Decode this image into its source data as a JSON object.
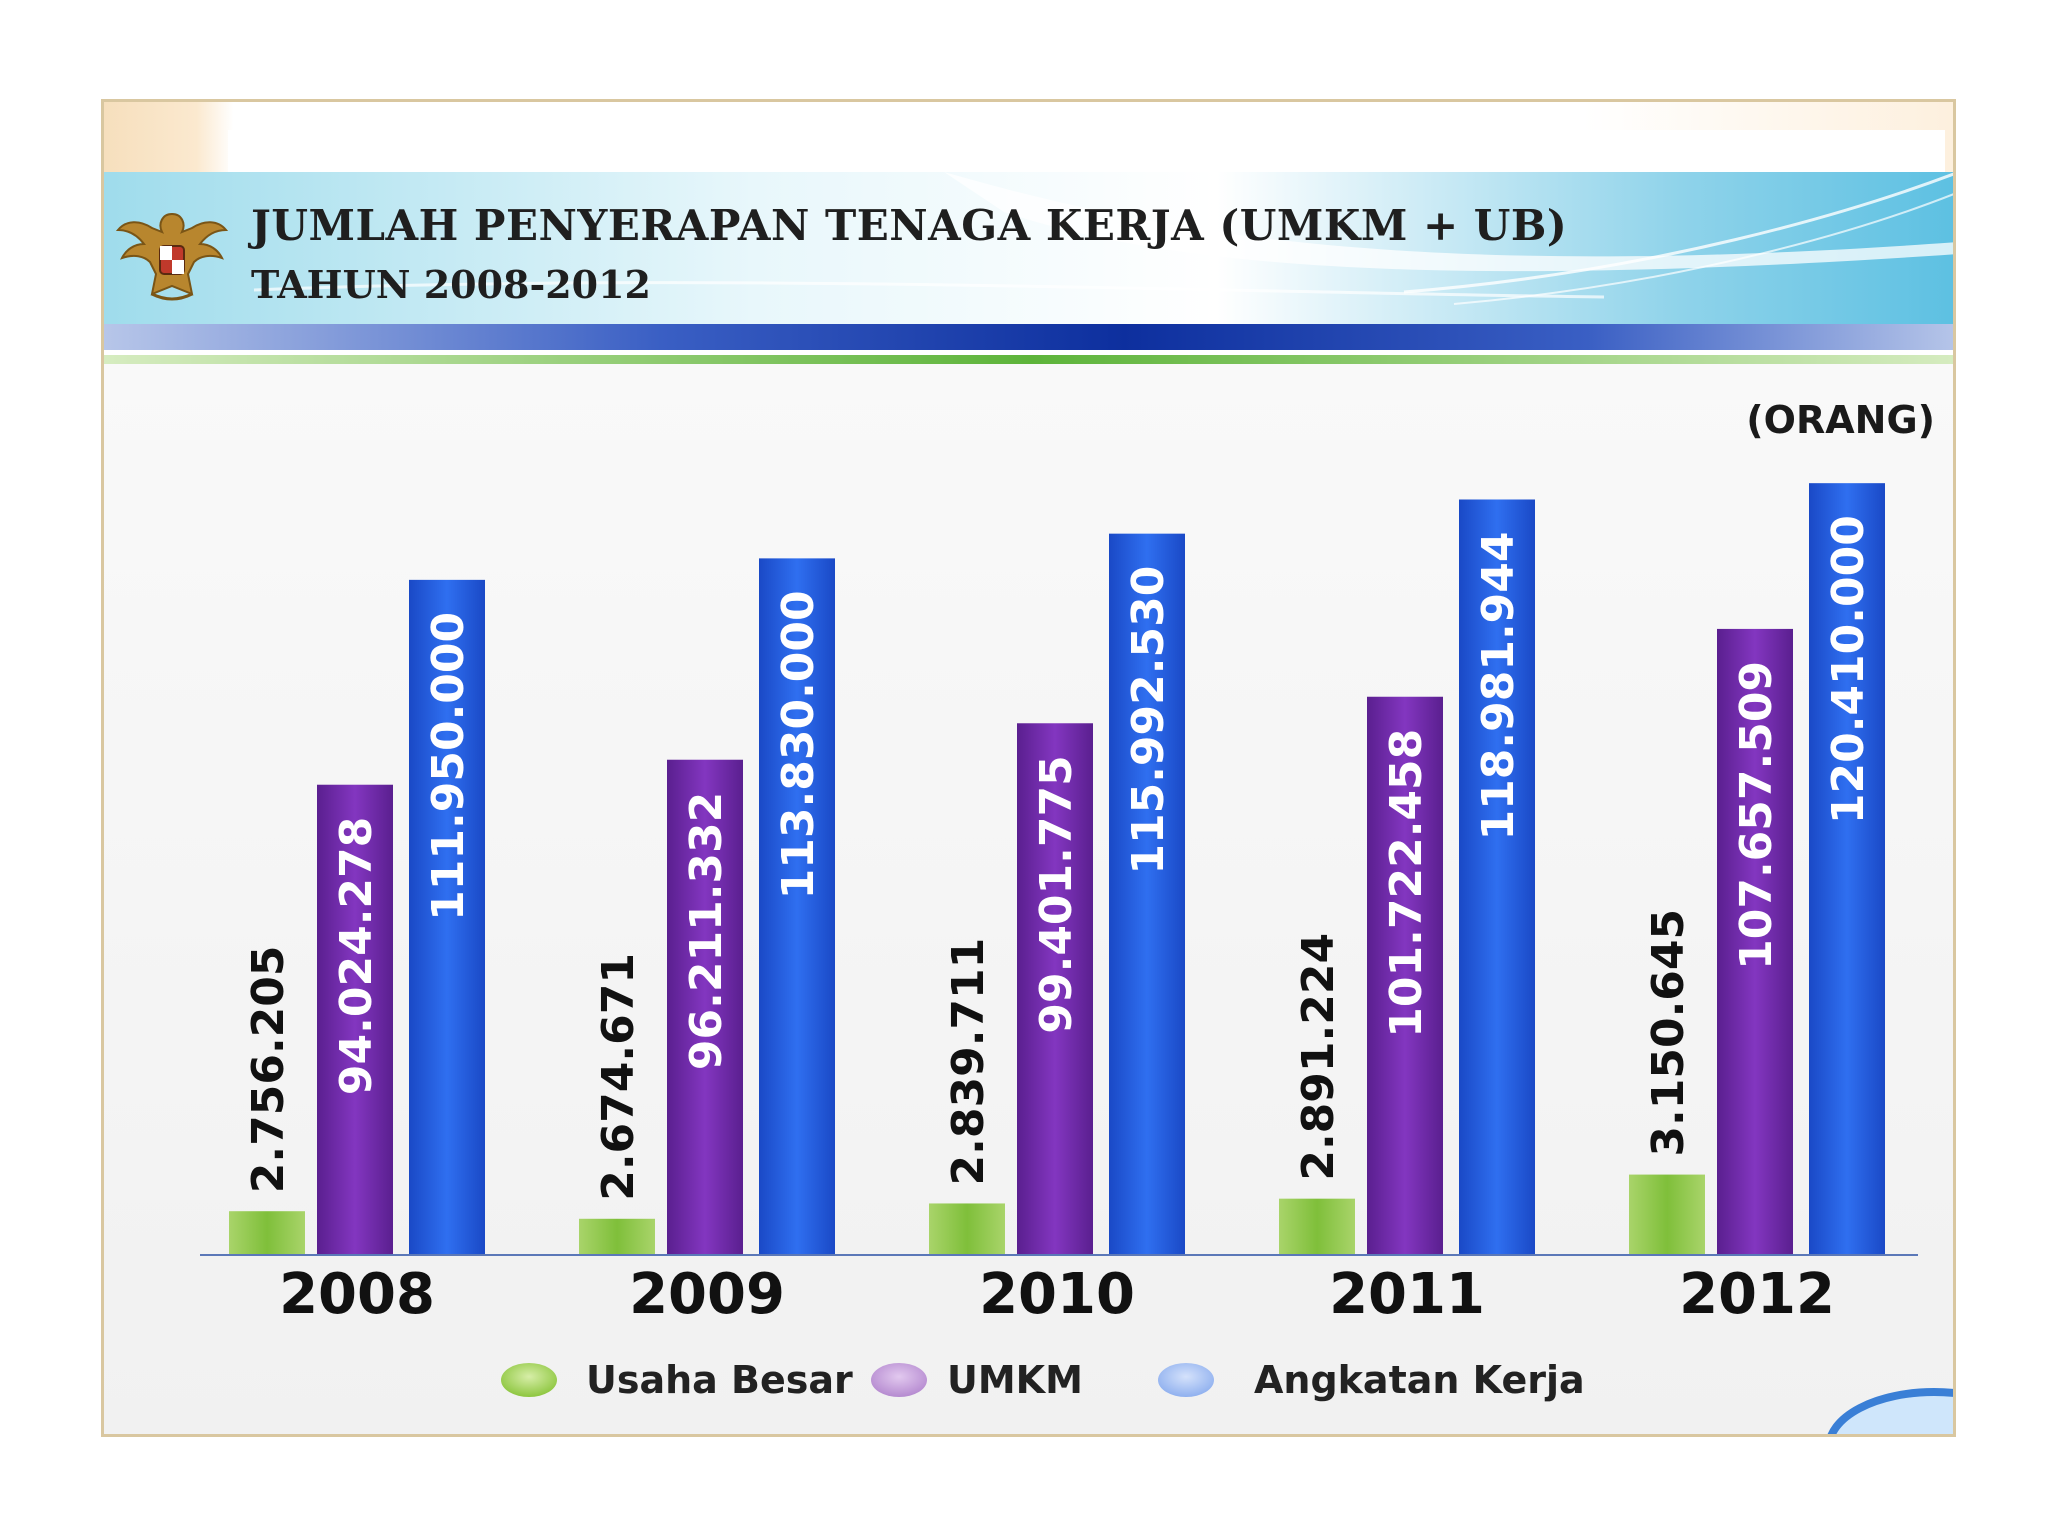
{
  "header": {
    "title_line1": "JUMLAH PENYERAPAN TENAGA KERJA (UMKM + UB)",
    "title_line2": "TAHUN 2008-2012"
  },
  "unit_label": "(ORANG)",
  "chart_data": {
    "type": "bar",
    "title": "JUMLAH PENYERAPAN TENAGA KERJA (UMKM + UB) TAHUN 2008-2012",
    "categories": [
      "2008",
      "2009",
      "2010",
      "2011",
      "2012"
    ],
    "ylabel": "(ORANG)",
    "xlabel": "",
    "grid": false,
    "legend_position": "bottom",
    "series": [
      {
        "name": "Usaha Besar",
        "color": "#8dc63f",
        "values": [
          2756205,
          2674671,
          2839711,
          2891224,
          3150645
        ],
        "labels": [
          "2.756.205",
          "2.674.671",
          "2.839.711",
          "2.891.224",
          "3.150.645"
        ]
      },
      {
        "name": "UMKM",
        "color": "#7030a0",
        "values": [
          94024278,
          96211332,
          99401775,
          101722458,
          107657509
        ],
        "labels": [
          "94.024.278",
          "96.211.332",
          "99.401.775",
          "101.722.458",
          "107.657.509"
        ]
      },
      {
        "name": "Angkatan Kerja",
        "color": "#2060e0",
        "values": [
          111950000,
          113830000,
          115992530,
          118981944,
          120410000
        ],
        "labels": [
          "111.950.000",
          "113.830.000",
          "115.992.530",
          "118.981.944",
          "120.410.000"
        ]
      }
    ]
  }
}
